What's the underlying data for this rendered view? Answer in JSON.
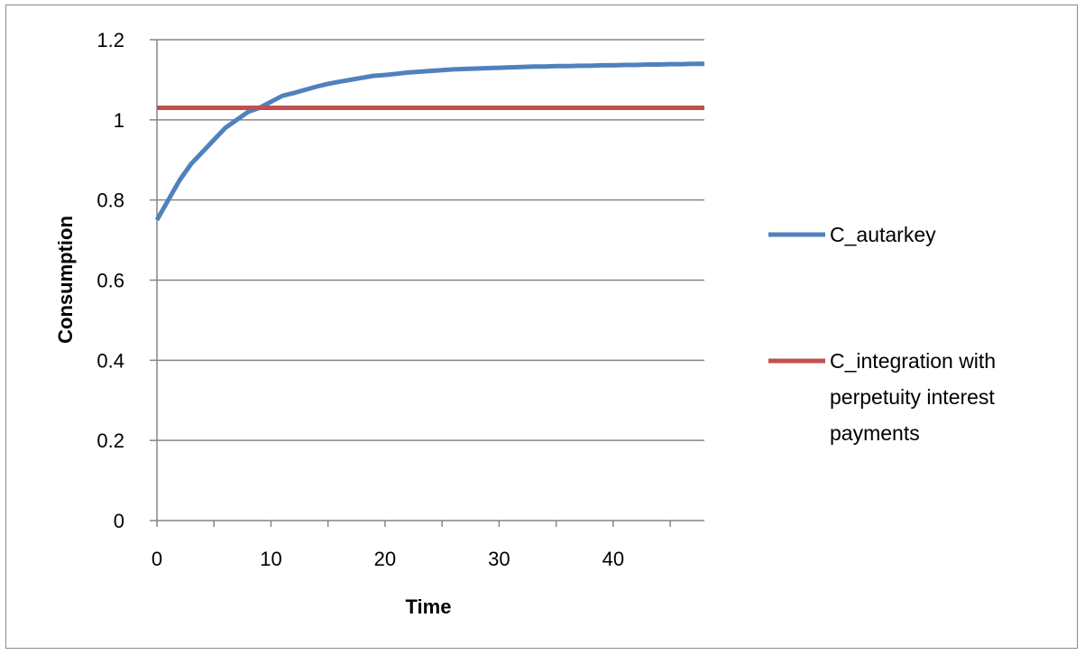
{
  "chart_data": {
    "type": "line",
    "title": "",
    "xlabel": "Time",
    "ylabel": "Consumption",
    "xlim": [
      0,
      48
    ],
    "ylim": [
      0,
      1.2
    ],
    "x_ticks": [
      0,
      10,
      20,
      30,
      40
    ],
    "y_ticks": [
      0,
      0.2,
      0.4,
      0.6,
      0.8,
      1,
      1.2
    ],
    "x_tick_labels": [
      "0",
      "10",
      "20",
      "30",
      "40"
    ],
    "y_tick_labels": [
      "0",
      "0.2",
      "0.4",
      "0.6",
      "0.8",
      "1",
      "1.2"
    ],
    "grid": "horizontal",
    "legend_position": "right",
    "series": [
      {
        "name": "C_autarkey",
        "color": "#4f81bd",
        "x": [
          0,
          1,
          2,
          3,
          4,
          5,
          6,
          7,
          8,
          9,
          10,
          11,
          12,
          13,
          14,
          15,
          16,
          17,
          18,
          19,
          20,
          21,
          22,
          23,
          24,
          25,
          26,
          27,
          28,
          29,
          30,
          31,
          32,
          33,
          34,
          35,
          36,
          37,
          38,
          39,
          40,
          41,
          42,
          43,
          44,
          45,
          46,
          47,
          48
        ],
        "y": [
          0.75,
          0.8,
          0.85,
          0.89,
          0.92,
          0.95,
          0.98,
          1.0,
          1.02,
          1.03,
          1.045,
          1.06,
          1.067,
          1.075,
          1.083,
          1.09,
          1.095,
          1.1,
          1.105,
          1.11,
          1.112,
          1.115,
          1.118,
          1.12,
          1.122,
          1.124,
          1.126,
          1.127,
          1.128,
          1.129,
          1.13,
          1.131,
          1.132,
          1.133,
          1.133,
          1.134,
          1.134,
          1.135,
          1.135,
          1.136,
          1.136,
          1.137,
          1.137,
          1.138,
          1.138,
          1.139,
          1.139,
          1.14,
          1.14
        ]
      },
      {
        "name": "C_integration with perpetuity interest payments",
        "name_lines": [
          "C_integration with",
          "perpetuity interest",
          "payments"
        ],
        "color": "#c0504d",
        "x": [
          0,
          48
        ],
        "y": [
          1.03,
          1.03
        ]
      }
    ]
  }
}
